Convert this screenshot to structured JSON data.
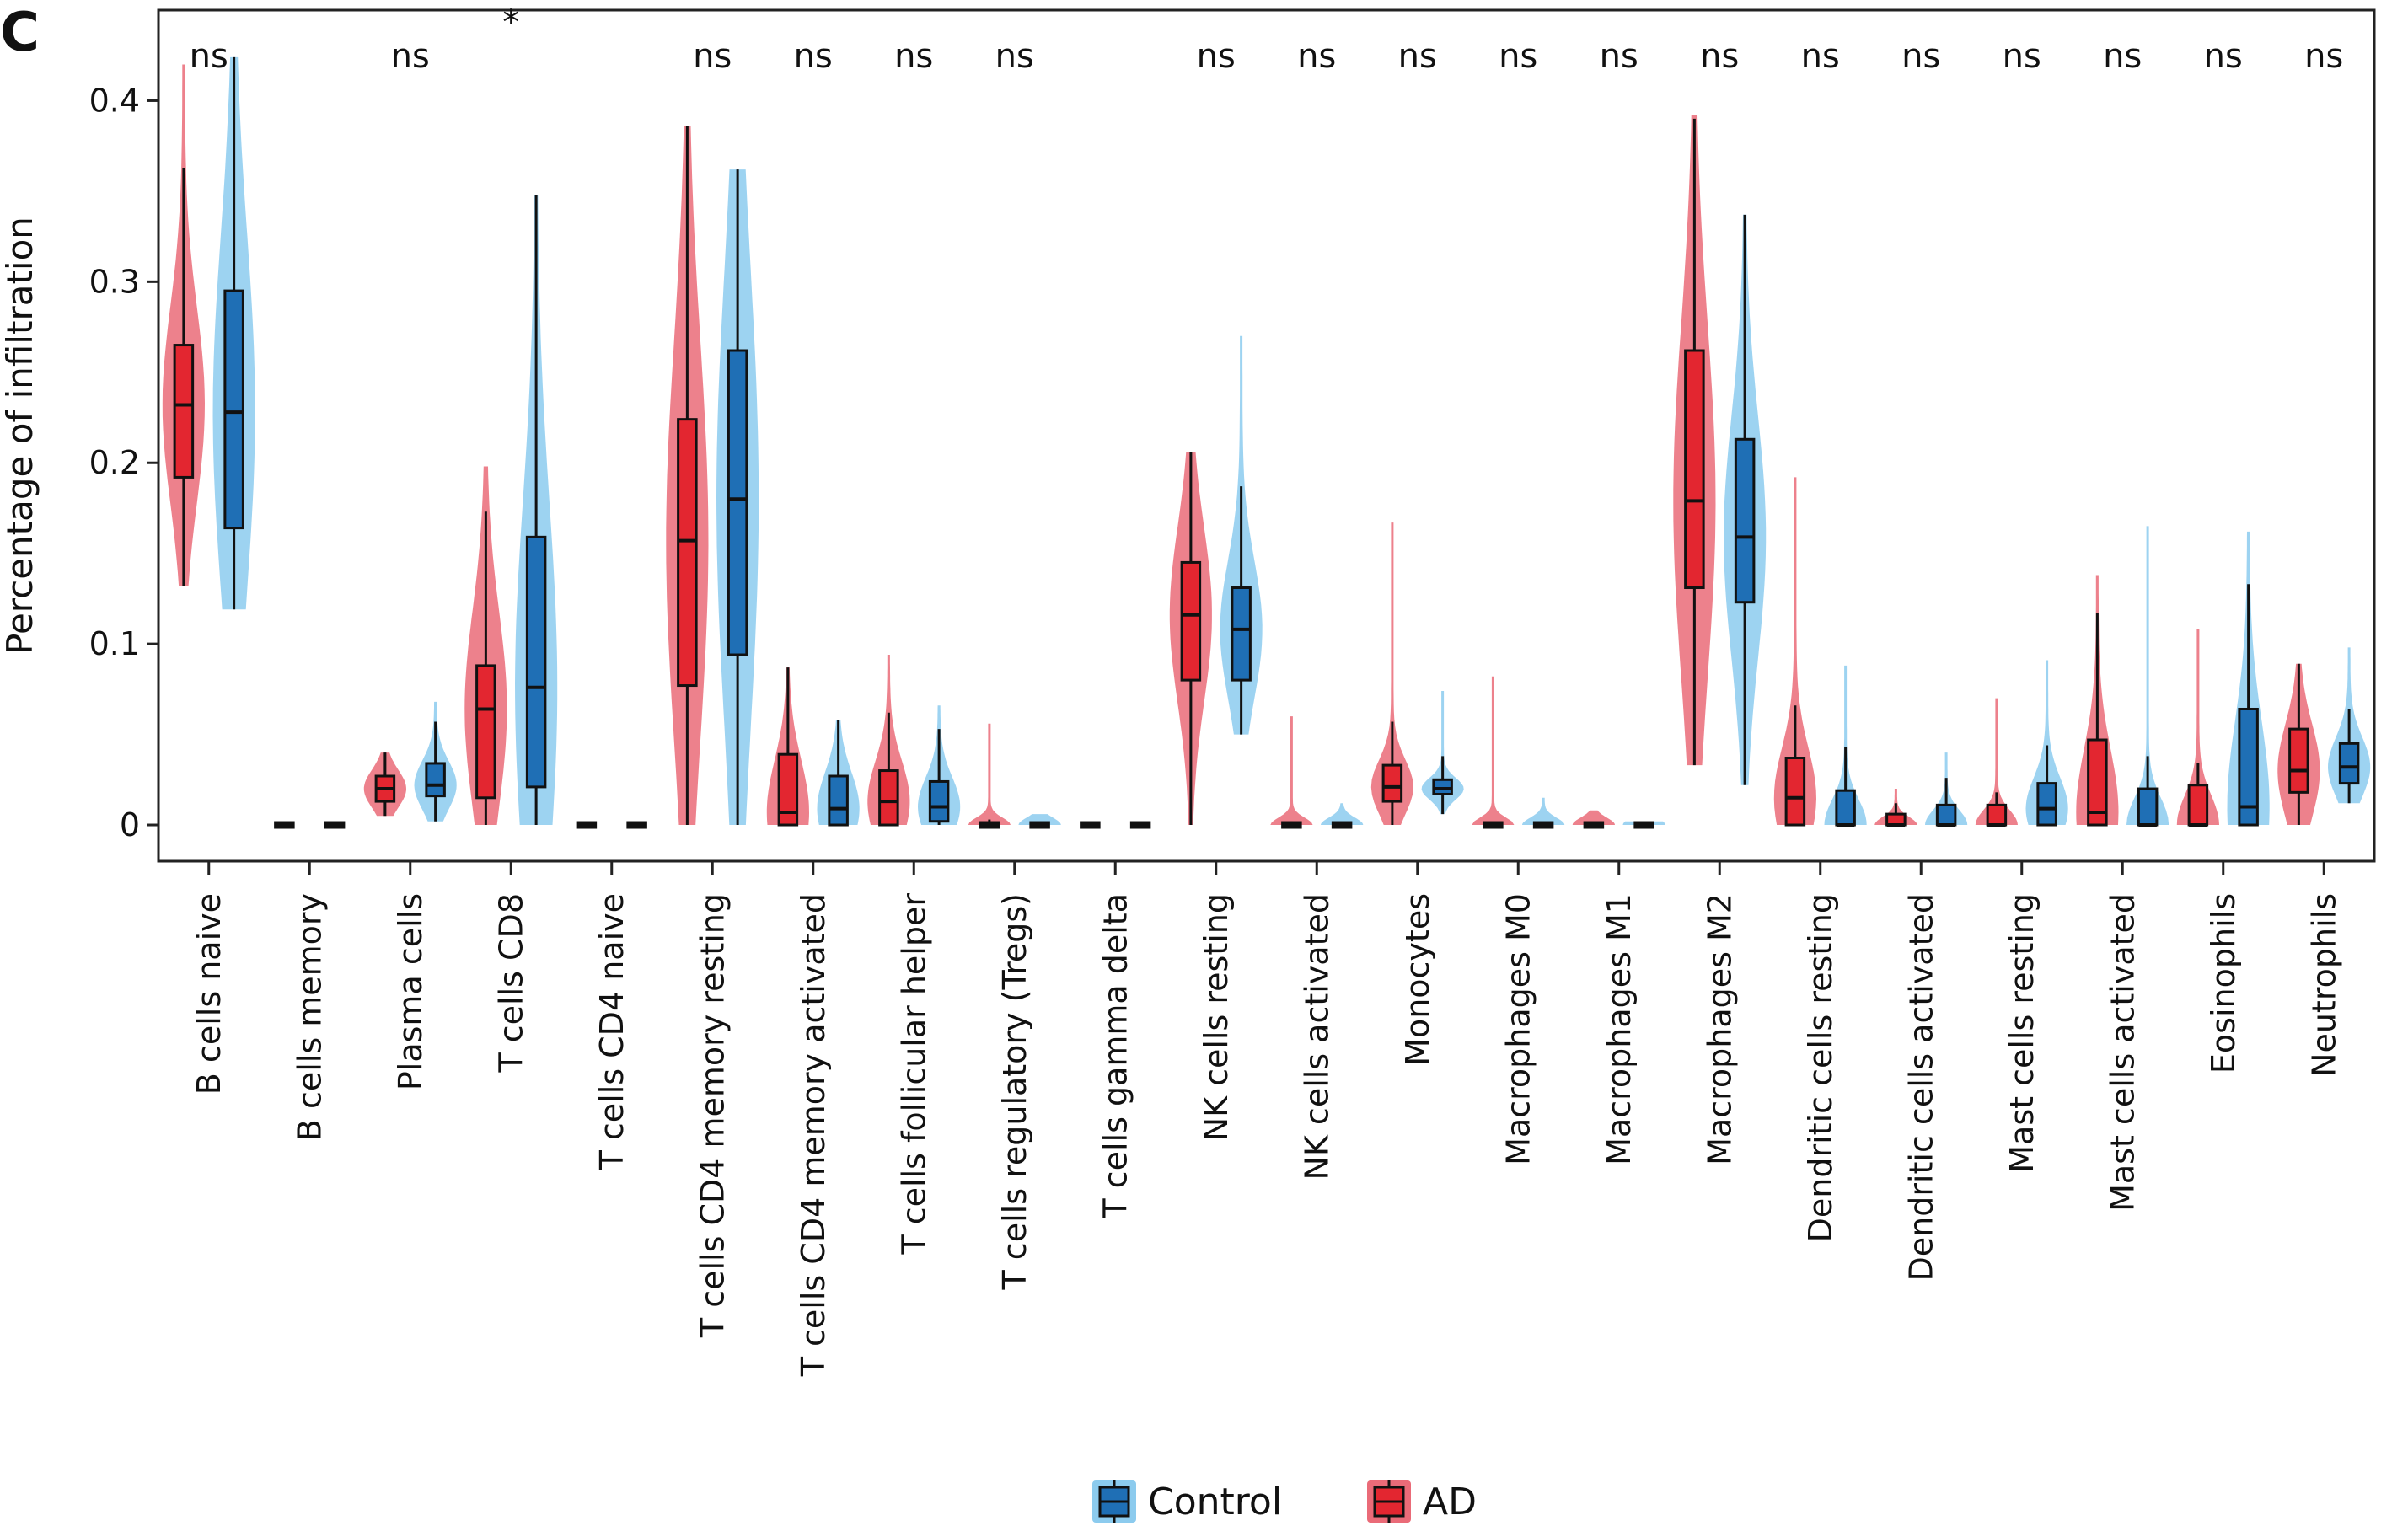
{
  "panel_letter": "C",
  "legend": [
    {
      "label": "Control",
      "color": "#1f6fb5",
      "violin_color": "#8ccbee"
    },
    {
      "label": "AD",
      "color": "#e32630",
      "violin_color": "#ea6b78"
    }
  ],
  "chart_data": {
    "type": "violin",
    "title": "",
    "xlabel": "",
    "ylabel": "Percentage of infiltration",
    "ylim": [
      -0.02,
      0.45
    ],
    "yticks": [
      0,
      0.1,
      0.2,
      0.3,
      0.4
    ],
    "ytick_labels": [
      "0",
      "0.1",
      "0.2",
      "0.3",
      "0.4"
    ],
    "grid": false,
    "legend_position": "bottom",
    "categories": [
      "B cells naive",
      "B cells memory",
      "Plasma cells",
      "T cells CD8",
      "T cells CD4 naive",
      "T cells CD4 memory resting",
      "T cells CD4 memory activated",
      "T cells follicular helper",
      "T cells regulatory (Tregs)",
      "T cells gamma delta",
      "NK cells resting",
      "NK cells activated",
      "Monocytes",
      "Macrophages M0",
      "Macrophages M1",
      "Macrophages M2",
      "Dendritic cells resting",
      "Dendritic cells activated",
      "Mast cells resting",
      "Mast cells activated",
      "Eosinophils",
      "Neutrophils"
    ],
    "significance": [
      "ns",
      "",
      "ns",
      "*",
      "",
      "ns",
      "ns",
      "ns",
      "ns",
      "",
      "ns",
      "ns",
      "ns",
      "ns",
      "ns",
      "ns",
      "ns",
      "ns",
      "ns",
      "ns",
      "ns",
      "ns"
    ],
    "series": [
      {
        "name": "AD",
        "stats": [
          {
            "min": 0.132,
            "q1": 0.192,
            "median": 0.232,
            "q3": 0.265,
            "max": 0.363,
            "vmax": 0.42
          },
          {
            "min": 0,
            "q1": 0,
            "median": 0,
            "q3": 0,
            "max": 0,
            "vmax": 0
          },
          {
            "min": 0.005,
            "q1": 0.013,
            "median": 0.02,
            "q3": 0.027,
            "max": 0.04,
            "vmax": 0.04
          },
          {
            "min": 0,
            "q1": 0.015,
            "median": 0.064,
            "q3": 0.088,
            "max": 0.173,
            "vmax": 0.198
          },
          {
            "min": 0,
            "q1": 0,
            "median": 0,
            "q3": 0,
            "max": 0,
            "vmax": 0
          },
          {
            "min": 0,
            "q1": 0.077,
            "median": 0.157,
            "q3": 0.224,
            "max": 0.386,
            "vmax": 0.386
          },
          {
            "min": 0,
            "q1": 0,
            "median": 0.007,
            "q3": 0.039,
            "max": 0.087,
            "vmax": 0.087
          },
          {
            "min": 0,
            "q1": 0,
            "median": 0.013,
            "q3": 0.03,
            "max": 0.062,
            "vmax": 0.094
          },
          {
            "min": 0,
            "q1": 0,
            "median": 0,
            "q3": 0,
            "max": 0.003,
            "vmax": 0.056
          },
          {
            "min": 0,
            "q1": 0,
            "median": 0,
            "q3": 0,
            "max": 0,
            "vmax": 0
          },
          {
            "min": 0,
            "q1": 0.08,
            "median": 0.116,
            "q3": 0.145,
            "max": 0.206,
            "vmax": 0.206
          },
          {
            "min": 0,
            "q1": 0,
            "median": 0,
            "q3": 0,
            "max": 0.002,
            "vmax": 0.06
          },
          {
            "min": 0,
            "q1": 0.013,
            "median": 0.021,
            "q3": 0.033,
            "max": 0.057,
            "vmax": 0.167
          },
          {
            "min": 0,
            "q1": 0,
            "median": 0,
            "q3": 0,
            "max": 0,
            "vmax": 0.082
          },
          {
            "min": 0,
            "q1": 0,
            "median": 0,
            "q3": 0,
            "max": 0,
            "vmax": 0.008
          },
          {
            "min": 0.033,
            "q1": 0.131,
            "median": 0.179,
            "q3": 0.262,
            "max": 0.39,
            "vmax": 0.392
          },
          {
            "min": 0,
            "q1": 0,
            "median": 0.015,
            "q3": 0.037,
            "max": 0.066,
            "vmax": 0.192
          },
          {
            "min": 0,
            "q1": 0,
            "median": 0,
            "q3": 0.006,
            "max": 0.012,
            "vmax": 0.02
          },
          {
            "min": 0,
            "q1": 0,
            "median": 0,
            "q3": 0.011,
            "max": 0.018,
            "vmax": 0.07
          },
          {
            "min": 0,
            "q1": 0,
            "median": 0.007,
            "q3": 0.047,
            "max": 0.117,
            "vmax": 0.138
          },
          {
            "min": 0,
            "q1": 0,
            "median": 0,
            "q3": 0.022,
            "max": 0.034,
            "vmax": 0.108
          },
          {
            "min": 0,
            "q1": 0.018,
            "median": 0.03,
            "q3": 0.053,
            "max": 0.089,
            "vmax": 0.089
          }
        ]
      },
      {
        "name": "Control",
        "stats": [
          {
            "min": 0.119,
            "q1": 0.164,
            "median": 0.228,
            "q3": 0.295,
            "max": 0.424,
            "vmax": 0.424
          },
          {
            "min": 0,
            "q1": 0,
            "median": 0,
            "q3": 0,
            "max": 0,
            "vmax": 0
          },
          {
            "min": 0.002,
            "q1": 0.016,
            "median": 0.022,
            "q3": 0.034,
            "max": 0.057,
            "vmax": 0.068
          },
          {
            "min": 0,
            "q1": 0.021,
            "median": 0.076,
            "q3": 0.159,
            "max": 0.348,
            "vmax": 0.348
          },
          {
            "min": 0,
            "q1": 0,
            "median": 0,
            "q3": 0,
            "max": 0,
            "vmax": 0
          },
          {
            "min": 0,
            "q1": 0.094,
            "median": 0.18,
            "q3": 0.262,
            "max": 0.362,
            "vmax": 0.362
          },
          {
            "min": 0,
            "q1": 0,
            "median": 0.009,
            "q3": 0.027,
            "max": 0.058,
            "vmax": 0.058
          },
          {
            "min": 0,
            "q1": 0.002,
            "median": 0.01,
            "q3": 0.024,
            "max": 0.053,
            "vmax": 0.066
          },
          {
            "min": 0,
            "q1": 0,
            "median": 0,
            "q3": 0,
            "max": 0,
            "vmax": 0.006
          },
          {
            "min": 0,
            "q1": 0,
            "median": 0,
            "q3": 0,
            "max": 0,
            "vmax": 0
          },
          {
            "min": 0.05,
            "q1": 0.08,
            "median": 0.108,
            "q3": 0.131,
            "max": 0.187,
            "vmax": 0.27
          },
          {
            "min": 0,
            "q1": 0,
            "median": 0,
            "q3": 0,
            "max": 0,
            "vmax": 0.012
          },
          {
            "min": 0.006,
            "q1": 0.017,
            "median": 0.02,
            "q3": 0.025,
            "max": 0.038,
            "vmax": 0.074
          },
          {
            "min": 0,
            "q1": 0,
            "median": 0,
            "q3": 0,
            "max": 0,
            "vmax": 0.015
          },
          {
            "min": 0,
            "q1": 0,
            "median": 0,
            "q3": 0,
            "max": 0,
            "vmax": 0.002
          },
          {
            "min": 0.022,
            "q1": 0.123,
            "median": 0.159,
            "q3": 0.213,
            "max": 0.337,
            "vmax": 0.337
          },
          {
            "min": 0,
            "q1": 0,
            "median": 0,
            "q3": 0.019,
            "max": 0.043,
            "vmax": 0.088
          },
          {
            "min": 0,
            "q1": 0,
            "median": 0,
            "q3": 0.011,
            "max": 0.026,
            "vmax": 0.04
          },
          {
            "min": 0,
            "q1": 0,
            "median": 0.009,
            "q3": 0.023,
            "max": 0.044,
            "vmax": 0.091
          },
          {
            "min": 0,
            "q1": 0,
            "median": 0,
            "q3": 0.02,
            "max": 0.038,
            "vmax": 0.165
          },
          {
            "min": 0,
            "q1": 0,
            "median": 0.01,
            "q3": 0.064,
            "max": 0.133,
            "vmax": 0.162
          },
          {
            "min": 0.012,
            "q1": 0.023,
            "median": 0.032,
            "q3": 0.045,
            "max": 0.064,
            "vmax": 0.098
          }
        ]
      }
    ]
  }
}
